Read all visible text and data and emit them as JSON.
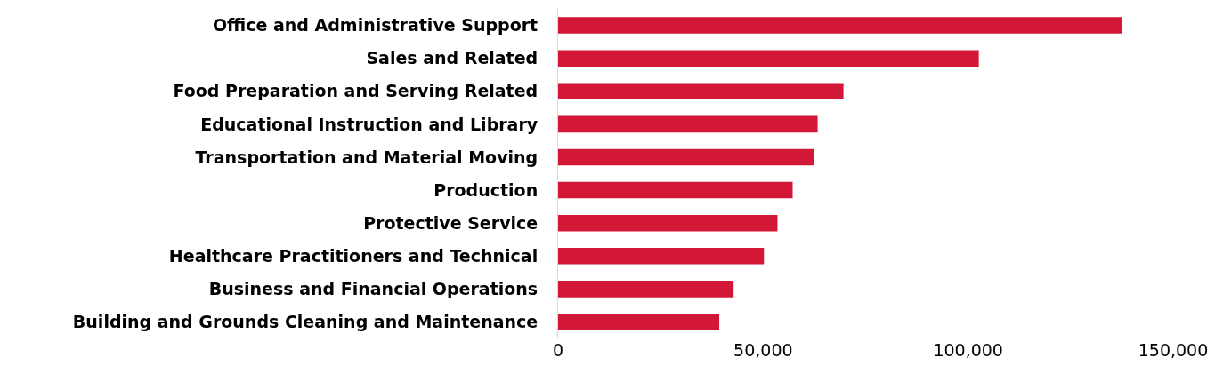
{
  "chart_data": {
    "type": "bar",
    "orientation": "horizontal",
    "categories": [
      "Office and Administrative Support",
      "Sales and Related",
      "Food Preparation and Serving Related",
      "Educational Instruction and Library",
      "Transportation and Material Moving",
      "Production",
      "Protective Service",
      "Healthcare Practitioners and Technical",
      "Business and Financial Operations",
      "Building and Grounds Cleaning and Maintenance"
    ],
    "values": [
      137600,
      102600,
      69600,
      63300,
      62400,
      57200,
      53500,
      50200,
      42800,
      39300
    ],
    "color": "#d31737",
    "xlim": [
      0,
      150000
    ],
    "xticks": [
      0,
      {
        "value": 50000,
        "label": "50,000"
      },
      {
        "value": 100000,
        "label": "100,000"
      },
      {
        "value": 150000,
        "label": "150,000"
      }
    ],
    "grid": false
  }
}
